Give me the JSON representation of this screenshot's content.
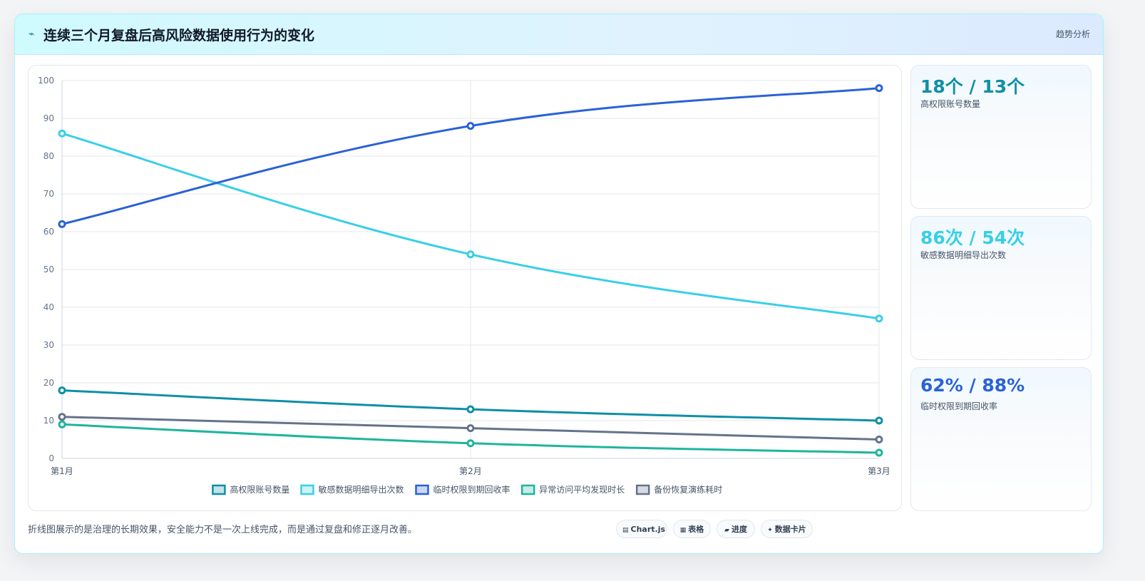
{
  "header": {
    "icon": "lightning-icon",
    "title": "连续三个月复盘后高风险数据使用行为的变化",
    "tag": "趋势分析"
  },
  "colors": {
    "teal_dark": "#0e8fa6",
    "cyan": "#38cfe6",
    "blue": "#2a62d6",
    "green": "#1fb59b",
    "slate": "#65738a"
  },
  "chart_data": {
    "type": "line",
    "x": [
      "第1月",
      "第2月",
      "第3月"
    ],
    "ylim": [
      0,
      100
    ],
    "yticks": [
      0,
      10,
      20,
      30,
      40,
      50,
      60,
      70,
      80,
      90,
      100
    ],
    "grid": true,
    "legend_position": "bottom",
    "series": [
      {
        "name": "高权限账号数量",
        "values": [
          18,
          13,
          10
        ],
        "color": "#0e8fa6"
      },
      {
        "name": "敏感数据明细导出次数",
        "values": [
          86,
          54,
          37
        ],
        "color": "#38cfe6"
      },
      {
        "name": "临时权限到期回收率",
        "values": [
          62,
          88,
          98
        ],
        "color": "#2a62d6"
      },
      {
        "name": "异常访问平均发现时长",
        "values": [
          9,
          4,
          1.5
        ],
        "color": "#1fb59b"
      },
      {
        "name": "备份恢复演练耗时",
        "values": [
          11,
          8,
          5
        ],
        "color": "#65738a"
      }
    ]
  },
  "kpis": [
    {
      "value": "18个 / 13个",
      "label": "高权限账号数量",
      "color": "#0e8fa6"
    },
    {
      "value": "86次 / 54次",
      "label": "敏感数据明细导出次数",
      "color": "#38cfe6"
    },
    {
      "value": "62% / 88%",
      "label": "临时权限到期回收率",
      "color": "#2a62d6"
    }
  ],
  "footer": {
    "note": "折线图展示的是治理的长期效果，安全能力不是一次上线完成，而是通过复盘和修正逐月改善。",
    "pills": [
      {
        "icon": "chart-icon",
        "glyph": "▤",
        "label": "Chart.js"
      },
      {
        "icon": "table-icon",
        "glyph": "▦",
        "label": "表格"
      },
      {
        "icon": "progress-icon",
        "glyph": "▰",
        "label": "进度"
      },
      {
        "icon": "sparkle-icon",
        "glyph": "✦",
        "label": "数据卡片"
      }
    ]
  }
}
